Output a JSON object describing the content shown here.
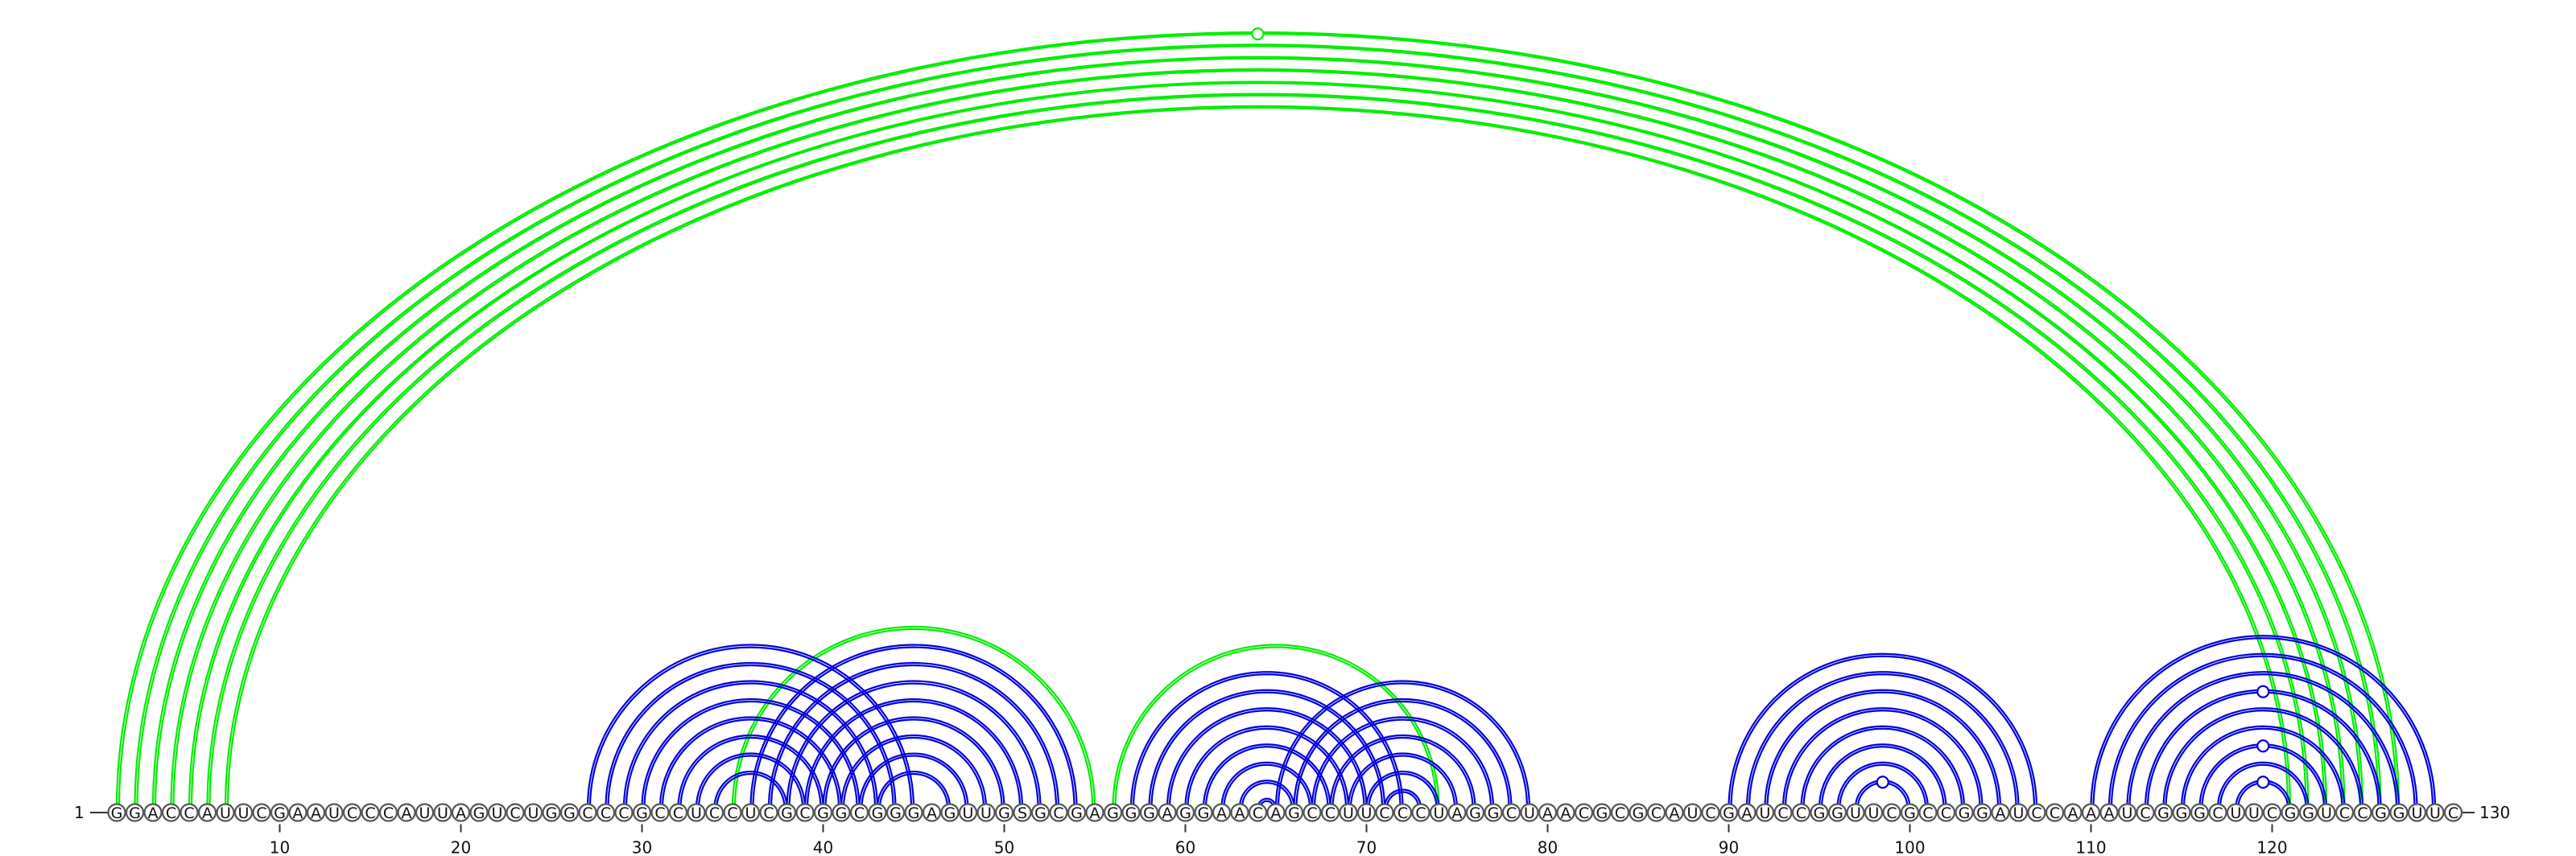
{
  "sequence": "GGACCAUUCGAAUCCCAUUAGUCUGGCCCGCCUCCUCGCGGCGGGAGUUGSGCGAGGGAGGAACAGCCUUCCCUAGGCUAACGCGCAUCGAUCCGGUUCGCCGGAUCCAAAUCGGGCUUCGGUCCGGUUC",
  "start_label": "1",
  "end_label": "130",
  "ticks": [
    10,
    20,
    30,
    40,
    50,
    60,
    70,
    80,
    90,
    100,
    110,
    120
  ],
  "colors": {
    "green": "#00ee00",
    "blue": "#0000dd",
    "circle_stroke": "#555555",
    "text": "#111111"
  },
  "green_pairs": [
    [
      1,
      127
    ],
    [
      2,
      126
    ],
    [
      3,
      125
    ],
    [
      4,
      124
    ],
    [
      5,
      123
    ],
    [
      6,
      122
    ],
    [
      7,
      121
    ],
    [
      35,
      55
    ],
    [
      56,
      74
    ]
  ],
  "blue_pairs": [
    [
      27,
      45
    ],
    [
      28,
      44
    ],
    [
      29,
      43
    ],
    [
      30,
      42
    ],
    [
      31,
      41
    ],
    [
      32,
      40
    ],
    [
      33,
      39
    ],
    [
      34,
      38
    ],
    [
      36,
      54
    ],
    [
      37,
      53
    ],
    [
      38,
      52
    ],
    [
      39,
      51
    ],
    [
      40,
      50
    ],
    [
      41,
      49
    ],
    [
      42,
      48
    ],
    [
      43,
      47
    ],
    [
      57,
      72
    ],
    [
      58,
      71
    ],
    [
      59,
      70
    ],
    [
      60,
      69
    ],
    [
      61,
      68
    ],
    [
      62,
      67
    ],
    [
      63,
      66
    ],
    [
      64,
      65
    ],
    [
      65,
      79
    ],
    [
      66,
      78
    ],
    [
      67,
      77
    ],
    [
      68,
      76
    ],
    [
      69,
      75
    ],
    [
      70,
      74
    ],
    [
      71,
      73
    ],
    [
      90,
      107
    ],
    [
      91,
      106
    ],
    [
      92,
      105
    ],
    [
      93,
      104
    ],
    [
      94,
      103
    ],
    [
      95,
      102
    ],
    [
      96,
      101
    ],
    [
      97,
      100
    ],
    [
      110,
      129
    ],
    [
      111,
      128
    ],
    [
      112,
      127
    ],
    [
      113,
      126
    ],
    [
      114,
      125
    ],
    [
      115,
      124
    ],
    [
      116,
      123
    ],
    [
      117,
      122
    ],
    [
      118,
      121
    ]
  ]
}
